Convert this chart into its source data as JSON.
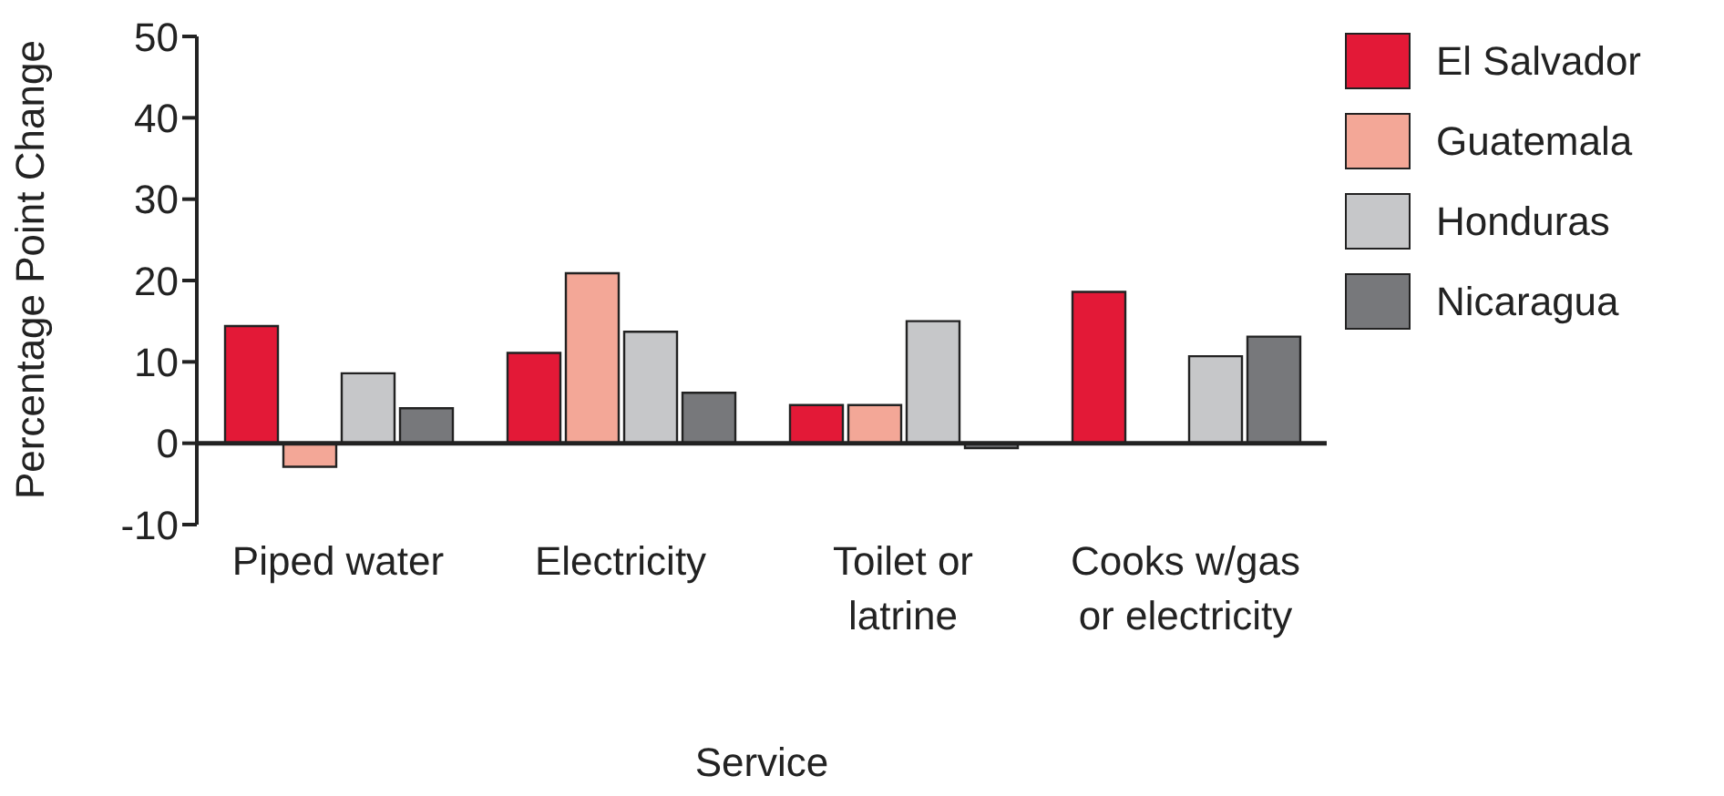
{
  "chart_data": {
    "type": "bar",
    "xlabel": "Service",
    "ylabel": "Percentage Point Change",
    "categories": [
      "Piped water",
      "Electricity",
      "Toilet or latrine",
      "Cooks w/gas or electricity"
    ],
    "series": [
      {
        "name": "El Salvador",
        "color": "#e31937",
        "values": [
          14.4,
          11.1,
          4.7,
          18.6
        ]
      },
      {
        "name": "Guatemala",
        "color": "#f3a797",
        "values": [
          -2.9,
          20.9,
          4.7,
          null
        ]
      },
      {
        "name": "Honduras",
        "color": "#c6c7c9",
        "values": [
          8.6,
          13.7,
          15.0,
          10.7
        ]
      },
      {
        "name": "Nicaragua",
        "color": "#77787b",
        "values": [
          4.3,
          6.2,
          -0.6,
          13.1
        ]
      }
    ],
    "ylim": [
      -10,
      50
    ],
    "yticks": [
      -10,
      0,
      10,
      20,
      30,
      40,
      50
    ],
    "legend": "right"
  }
}
